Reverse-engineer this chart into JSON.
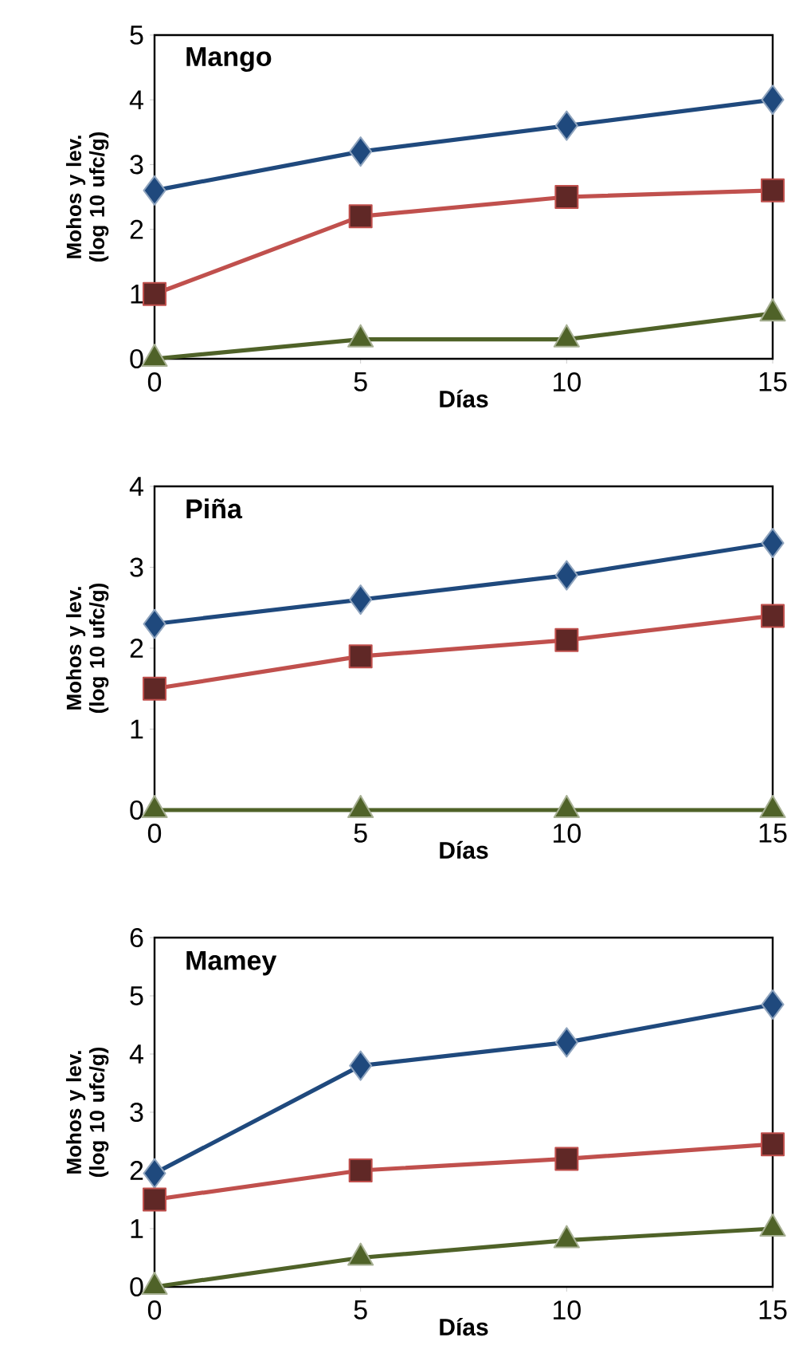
{
  "chart_data": [
    {
      "type": "line",
      "title": "Mango",
      "xlabel": "Días",
      "ylabel": "Mohos y lev. (log 10 ufc/g)",
      "x": [
        0,
        5,
        10,
        15
      ],
      "xlim": [
        0,
        15
      ],
      "ylim": [
        0,
        5
      ],
      "xticks": [
        0,
        5,
        10,
        15
      ],
      "yticks": [
        0,
        1,
        2,
        3,
        4,
        5
      ],
      "series": [
        {
          "color": "#1f497d",
          "marker": "diamond",
          "values": [
            2.6,
            3.2,
            3.6,
            4.0
          ]
        },
        {
          "color": "#c0504d",
          "marker": "square",
          "values": [
            1.0,
            2.2,
            2.5,
            2.6
          ]
        },
        {
          "color": "#4f6228",
          "marker": "triangle",
          "values": [
            0,
            0.3,
            0.3,
            0.7
          ]
        }
      ]
    },
    {
      "type": "line",
      "title": "Piña",
      "xlabel": "Días",
      "ylabel": "Mohos y lev. (log 10 ufc/g)",
      "x": [
        0,
        5,
        10,
        15
      ],
      "xlim": [
        0,
        15
      ],
      "ylim": [
        0,
        4
      ],
      "xticks": [
        0,
        5,
        10,
        15
      ],
      "yticks": [
        0,
        1,
        2,
        3,
        4
      ],
      "series": [
        {
          "color": "#1f497d",
          "marker": "diamond",
          "values": [
            2.3,
            2.6,
            2.9,
            3.3
          ]
        },
        {
          "color": "#c0504d",
          "marker": "square",
          "values": [
            1.5,
            1.9,
            2.1,
            2.4
          ]
        },
        {
          "color": "#4f6228",
          "marker": "triangle",
          "values": [
            0,
            0,
            0,
            0
          ]
        }
      ]
    },
    {
      "type": "line",
      "title": "Mamey",
      "xlabel": "Días",
      "ylabel": "Mohos y lev. (log 10 ufc/g)",
      "x": [
        0,
        5,
        10,
        15
      ],
      "xlim": [
        0,
        15
      ],
      "ylim": [
        0,
        6
      ],
      "xticks": [
        0,
        5,
        10,
        15
      ],
      "yticks": [
        0,
        1,
        2,
        3,
        4,
        5,
        6
      ],
      "series": [
        {
          "color": "#1f497d",
          "marker": "diamond",
          "values": [
            1.95,
            3.8,
            4.2,
            4.85
          ]
        },
        {
          "color": "#c0504d",
          "marker": "square",
          "values": [
            1.5,
            2.0,
            2.2,
            2.45
          ]
        },
        {
          "color": "#4f6228",
          "marker": "triangle",
          "values": [
            0,
            0.5,
            0.8,
            1.0
          ]
        }
      ]
    }
  ]
}
